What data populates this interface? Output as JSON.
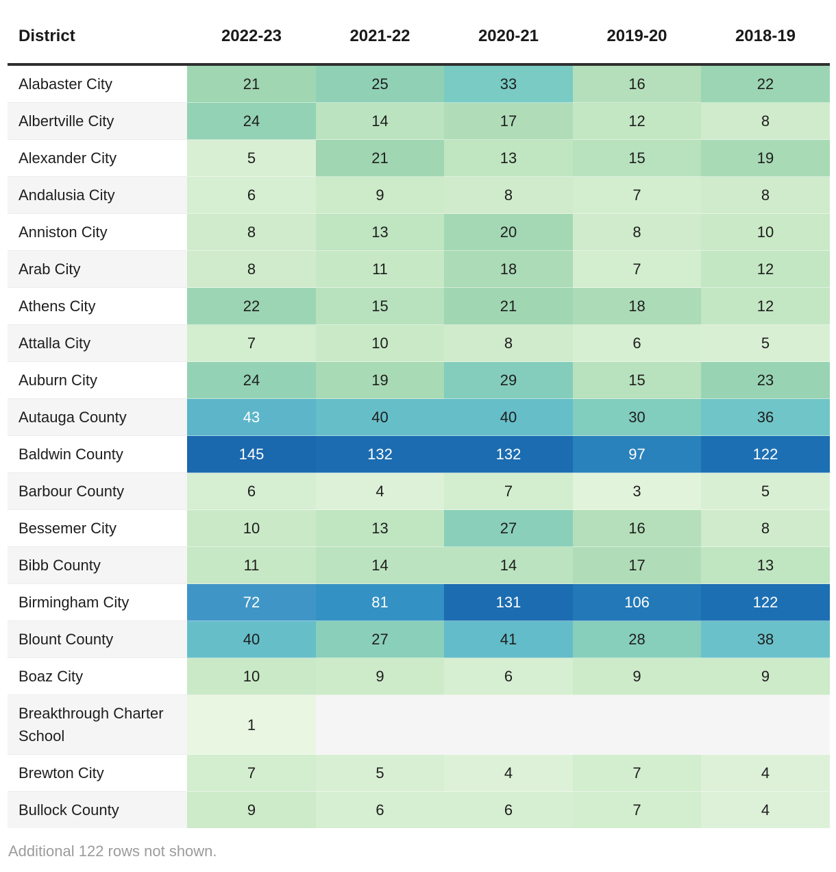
{
  "chart_data": {
    "type": "heatmap",
    "columns": [
      "District",
      "2022-23",
      "2021-22",
      "2020-21",
      "2019-20",
      "2018-19"
    ],
    "rows": [
      {
        "district": "Alabaster City",
        "values": [
          21,
          25,
          33,
          16,
          22
        ]
      },
      {
        "district": "Albertville City",
        "values": [
          24,
          14,
          17,
          12,
          8
        ]
      },
      {
        "district": "Alexander City",
        "values": [
          5,
          21,
          13,
          15,
          19
        ]
      },
      {
        "district": "Andalusia City",
        "values": [
          6,
          9,
          8,
          7,
          8
        ]
      },
      {
        "district": "Anniston City",
        "values": [
          8,
          13,
          20,
          8,
          10
        ]
      },
      {
        "district": "Arab City",
        "values": [
          8,
          11,
          18,
          7,
          12
        ]
      },
      {
        "district": "Athens City",
        "values": [
          22,
          15,
          21,
          18,
          12
        ]
      },
      {
        "district": "Attalla City",
        "values": [
          7,
          10,
          8,
          6,
          5
        ]
      },
      {
        "district": "Auburn City",
        "values": [
          24,
          19,
          29,
          15,
          23
        ]
      },
      {
        "district": "Autauga County",
        "values": [
          43,
          40,
          40,
          30,
          36
        ]
      },
      {
        "district": "Baldwin County",
        "values": [
          145,
          132,
          132,
          97,
          122
        ]
      },
      {
        "district": "Barbour County",
        "values": [
          6,
          4,
          7,
          3,
          5
        ]
      },
      {
        "district": "Bessemer City",
        "values": [
          10,
          13,
          27,
          16,
          8
        ]
      },
      {
        "district": "Bibb County",
        "values": [
          11,
          14,
          14,
          17,
          13
        ]
      },
      {
        "district": "Birmingham City",
        "values": [
          72,
          81,
          131,
          106,
          122
        ]
      },
      {
        "district": "Blount County",
        "values": [
          40,
          27,
          41,
          28,
          38
        ]
      },
      {
        "district": "Boaz City",
        "values": [
          10,
          9,
          6,
          9,
          9
        ]
      },
      {
        "district": "Breakthrough Charter School",
        "values": [
          1,
          null,
          null,
          null,
          null
        ]
      },
      {
        "district": "Brewton City",
        "values": [
          7,
          5,
          4,
          7,
          4
        ]
      },
      {
        "district": "Bullock County",
        "values": [
          9,
          6,
          6,
          7,
          4
        ]
      }
    ],
    "note": "Additional 122 rows not shown.",
    "legend_position": "none",
    "value_range": [
      1,
      145
    ]
  },
  "heatmap": {
    "stops": [
      [
        1,
        "#e8f6e2"
      ],
      [
        5,
        "#d9efd4"
      ],
      [
        9,
        "#cdeac9"
      ],
      [
        13,
        "#c0e5c1"
      ],
      [
        17,
        "#b0ddb8"
      ],
      [
        21,
        "#a0d6b2"
      ],
      [
        25,
        "#90d1b6"
      ],
      [
        29,
        "#84cdbc"
      ],
      [
        33,
        "#79cbc4"
      ],
      [
        37,
        "#6dc3c9"
      ],
      [
        41,
        "#63bcc9"
      ],
      [
        44,
        "#59b1c9"
      ],
      [
        55,
        "#4aa2c8"
      ],
      [
        72,
        "#3f96c6"
      ],
      [
        82,
        "#3390c4"
      ],
      [
        97,
        "#2a82bc"
      ],
      [
        107,
        "#2278b7"
      ],
      [
        120,
        "#1d6fb3"
      ],
      [
        132,
        "#1b6cb1"
      ],
      [
        145,
        "#1a68ae"
      ]
    ],
    "white_text_threshold": 42,
    "dark_text_color": "#1d1d1d",
    "white_text_color": "#ffffff",
    "stripe_colors": [
      "#ffffff",
      "#f5f5f5"
    ],
    "header_rule_color": "#2f2f2f"
  }
}
